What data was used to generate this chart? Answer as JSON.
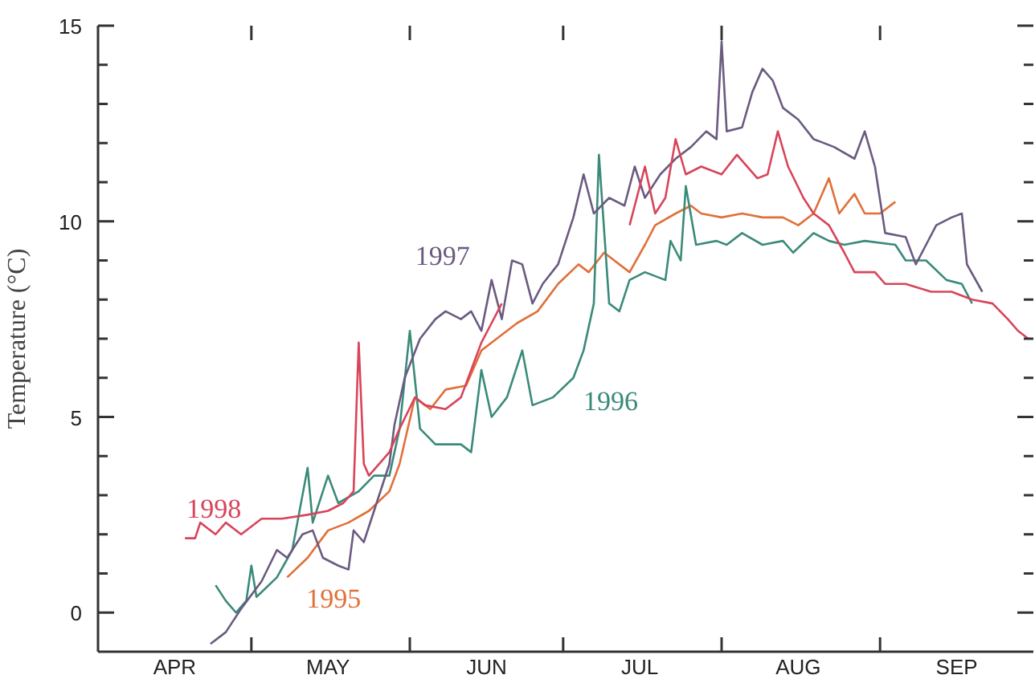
{
  "chart_data": {
    "type": "line",
    "ylabel": "Temperature (°C)",
    "xlim": [
      "--04-01",
      "--10-01"
    ],
    "ylim": [
      -1,
      15
    ],
    "xticks": [
      {
        "value": "--04-16",
        "label": "APR"
      },
      {
        "value": "--05-01",
        "label": null
      },
      {
        "value": "--05-16",
        "label": "MAY"
      },
      {
        "value": "--06-01",
        "label": null
      },
      {
        "value": "--06-16",
        "label": "JUN"
      },
      {
        "value": "--07-01",
        "label": null
      },
      {
        "value": "--07-16",
        "label": "JUL"
      },
      {
        "value": "--08-01",
        "label": null
      },
      {
        "value": "--08-16",
        "label": "AUG"
      },
      {
        "value": "--09-01",
        "label": null
      },
      {
        "value": "--09-16",
        "label": "SEP"
      }
    ],
    "yticks": [
      0,
      {
        "value": 1,
        "label": null
      },
      {
        "value": 2,
        "label": null
      },
      {
        "value": 3,
        "label": null
      },
      {
        "value": 4,
        "label": null
      },
      5,
      {
        "value": 6,
        "label": null
      },
      {
        "value": 7,
        "label": null
      },
      {
        "value": 8,
        "label": null
      },
      {
        "value": 9,
        "label": null
      },
      10,
      {
        "value": 11,
        "label": null
      },
      {
        "value": 12,
        "label": null
      },
      {
        "value": 13,
        "label": null
      },
      {
        "value": 14,
        "label": null
      },
      15
    ],
    "marker": "none",
    "line_style": "solid",
    "series": [
      {
        "name": "1995",
        "color": "#e0703a",
        "x": [
          "--05-08",
          "--05-12",
          "--05-16",
          "--05-20",
          "--05-24",
          "--05-28",
          "--05-30",
          "--06-02",
          "--06-05",
          "--06-08",
          "--06-12",
          "--06-15",
          "--06-18",
          "--06-22",
          "--06-26",
          "--06-30",
          "--07-04",
          "--07-06",
          "--07-09",
          "--07-12",
          "--07-14",
          "--07-17",
          "--07-19",
          "--07-23",
          "--07-26",
          "--07-28",
          "--08-01",
          "--08-05",
          "--08-09",
          "--08-13",
          "--08-16",
          "--08-19",
          "--08-22",
          "--08-24",
          "--08-27",
          "--08-29",
          "--09-01",
          "--09-04"
        ],
        "values": [
          0.9,
          1.4,
          2.1,
          2.3,
          2.6,
          3.1,
          3.8,
          5.5,
          5.2,
          5.7,
          5.8,
          6.7,
          7.0,
          7.4,
          7.7,
          8.4,
          8.9,
          8.7,
          9.2,
          8.9,
          8.7,
          9.4,
          9.9,
          10.2,
          10.4,
          10.2,
          10.1,
          10.2,
          10.1,
          10.1,
          9.9,
          10.2,
          11.1,
          10.2,
          10.7,
          10.2,
          10.2,
          10.5
        ]
      },
      {
        "name": "1996",
        "color": "#3a8a7a",
        "x": [
          "--04-24",
          "--04-26",
          "--04-28",
          "--04-30",
          "--05-01",
          "--05-02",
          "--05-06",
          "--05-09",
          "--05-12",
          "--05-13",
          "--05-16",
          "--05-18",
          "--05-22",
          "--05-25",
          "--05-28",
          "--05-30",
          "--06-01",
          "--06-03",
          "--06-06",
          "--06-11",
          "--06-13",
          "--06-15",
          "--06-17",
          "--06-20",
          "--06-23",
          "--06-25",
          "--06-29",
          "--07-03",
          "--07-05",
          "--07-07",
          "--07-08",
          "--07-10",
          "--07-12",
          "--07-14",
          "--07-17",
          "--07-21",
          "--07-22",
          "--07-24",
          "--07-25",
          "--07-27",
          "--07-31",
          "--08-02",
          "--08-05",
          "--08-09",
          "--08-13",
          "--08-15",
          "--08-19",
          "--08-22",
          "--08-25",
          "--08-29",
          "--09-04",
          "--09-06",
          "--09-10",
          "--09-14",
          "--09-17",
          "--09-19"
        ],
        "values": [
          0.7,
          0.3,
          0.0,
          0.3,
          1.2,
          0.4,
          0.9,
          1.6,
          3.7,
          2.3,
          3.5,
          2.8,
          3.1,
          3.5,
          3.5,
          4.7,
          7.2,
          4.7,
          4.3,
          4.3,
          4.1,
          6.2,
          5.0,
          5.5,
          6.7,
          5.3,
          5.5,
          6.0,
          6.7,
          7.9,
          11.7,
          7.9,
          7.7,
          8.5,
          8.7,
          8.5,
          9.5,
          9.0,
          10.9,
          9.4,
          9.5,
          9.4,
          9.7,
          9.4,
          9.5,
          9.2,
          9.7,
          9.5,
          9.4,
          9.5,
          9.4,
          9.0,
          9.0,
          8.5,
          8.4,
          7.9
        ]
      },
      {
        "name": "1997",
        "color": "#6a5a80",
        "x": [
          "--04-23",
          "--04-26",
          "--04-29",
          "--05-03",
          "--05-06",
          "--05-08",
          "--05-11",
          "--05-13",
          "--05-15",
          "--05-18",
          "--05-20",
          "--05-21",
          "--05-23",
          "--05-25",
          "--05-28",
          "--05-29",
          "--05-31",
          "--06-03",
          "--06-06",
          "--06-08",
          "--06-11",
          "--06-13",
          "--06-15",
          "--06-17",
          "--06-19",
          "--06-21",
          "--06-23",
          "--06-25",
          "--06-27",
          "--06-30",
          "--07-03",
          "--07-05",
          "--07-07",
          "--07-10",
          "--07-13",
          "--07-15",
          "--07-17",
          "--07-20",
          "--07-23",
          "--07-26",
          "--07-29",
          "--07-31",
          "--08-01",
          "--08-02",
          "--08-05",
          "--08-07",
          "--08-09",
          "--08-11",
          "--08-13",
          "--08-16",
          "--08-19",
          "--08-23",
          "--08-27",
          "--08-29",
          "--08-31",
          "--09-02",
          "--09-06",
          "--09-08",
          "--09-10",
          "--09-12",
          "--09-15",
          "--09-17",
          "--09-18",
          "--09-21"
        ],
        "values": [
          -0.8,
          -0.5,
          0.1,
          0.8,
          1.6,
          1.4,
          2.0,
          2.1,
          1.4,
          1.2,
          1.1,
          2.1,
          1.8,
          2.6,
          3.8,
          4.8,
          6.0,
          7.0,
          7.5,
          7.7,
          7.5,
          7.7,
          7.2,
          8.5,
          7.5,
          9.0,
          8.9,
          7.9,
          8.4,
          8.9,
          10.1,
          11.2,
          10.2,
          10.6,
          10.4,
          11.4,
          10.6,
          11.2,
          11.6,
          11.9,
          12.3,
          12.1,
          14.6,
          12.3,
          12.4,
          13.3,
          13.9,
          13.6,
          12.9,
          12.6,
          12.1,
          11.9,
          11.6,
          12.3,
          11.4,
          9.7,
          9.6,
          8.9,
          9.4,
          9.9,
          10.1,
          10.2,
          8.9,
          8.2
        ]
      },
      {
        "name": "1998",
        "color": "#d8445a",
        "x": [
          "--04-18",
          "--04-20",
          "--04-21",
          "--04-24",
          "--04-26",
          "--04-29",
          "--05-03",
          "--05-07",
          "--05-12",
          "--05-16",
          "--05-19",
          "--05-21",
          "--05-22",
          "--05-23",
          "--05-24",
          "--05-28",
          "--05-30",
          "--06-02",
          "--06-04",
          "--06-08",
          "--06-11",
          "--06-13",
          "--06-15",
          "--06-17",
          "--06-19",
          "--06-25",
          "--07-14",
          "--07-17",
          "--07-19",
          "--07-21",
          "--07-23",
          "--07-25",
          "--07-28",
          "--08-01",
          "--08-04",
          "--08-08",
          "--08-10",
          "--08-12",
          "--08-14",
          "--08-17",
          "--08-19",
          "--08-22",
          "--08-25",
          "--08-27",
          "--08-31",
          "--09-02",
          "--09-06",
          "--09-11",
          "--09-15",
          "--09-19",
          "--09-23",
          "--09-26",
          "--09-28",
          "--09-30"
        ],
        "values": [
          1.9,
          1.9,
          2.3,
          2.0,
          2.3,
          2.0,
          2.4,
          2.4,
          2.5,
          2.6,
          2.8,
          3.1,
          6.9,
          3.8,
          3.5,
          4.1,
          4.7,
          5.5,
          5.3,
          5.2,
          5.5,
          6.2,
          6.9,
          7.4,
          7.9,
          null,
          9.9,
          11.4,
          10.2,
          10.6,
          12.1,
          11.2,
          11.4,
          11.2,
          11.7,
          11.1,
          11.2,
          12.3,
          11.4,
          10.6,
          10.2,
          9.9,
          9.2,
          8.7,
          8.7,
          8.4,
          8.4,
          8.2,
          8.2,
          8.0,
          7.9,
          7.5,
          7.2,
          7.0
        ]
      }
    ]
  }
}
